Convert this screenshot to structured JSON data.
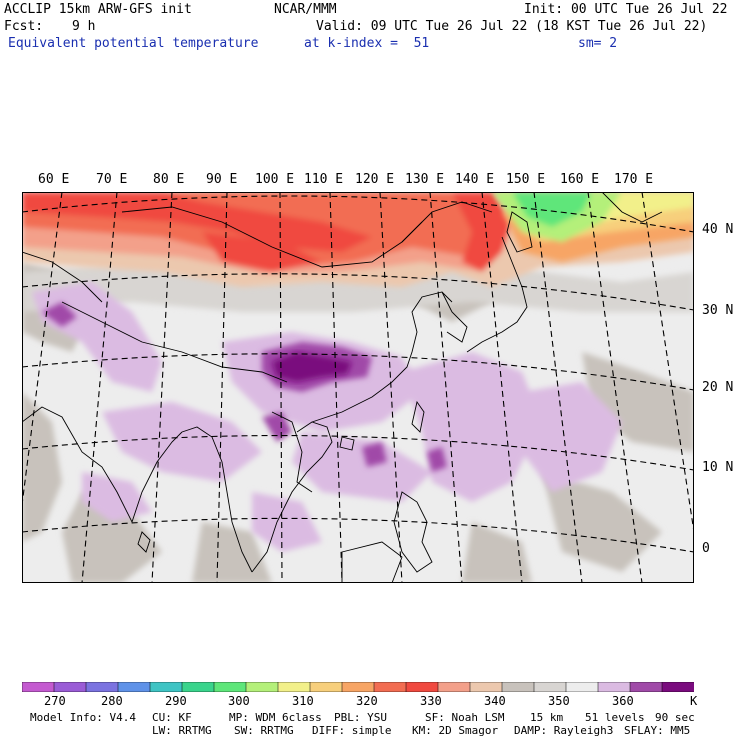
{
  "header": {
    "left1": "ACCLIP 15km ARW-GFS init",
    "center1": "NCAR/MMM",
    "right1": "Init: 00 UTC Tue 26 Jul 22",
    "fcst_label": "Fcst:",
    "fcst_value": "9 h",
    "valid": "Valid: 09 UTC Tue 26 Jul 22 (18 KST Tue 26 Jul 22)",
    "field": "Equivalent potential temperature",
    "level": "at k-index =  51",
    "smooth": "sm= 2"
  },
  "map": {
    "lon_labels": [
      "60 E",
      "70 E",
      "80 E",
      "90 E",
      "100 E",
      "110 E",
      "120 E",
      "130 E",
      "140 E",
      "150 E",
      "160 E",
      "170 E"
    ],
    "lat_labels": [
      "40 N",
      "30 N",
      "20 N",
      "10 N",
      "0"
    ]
  },
  "colorbar": {
    "unit": "K",
    "tick_labels": [
      "270",
      "280",
      "290",
      "300",
      "310",
      "320",
      "330",
      "340",
      "350",
      "360"
    ],
    "colors": [
      "#c45ad0",
      "#9a5cd6",
      "#7b73e0",
      "#5f92e8",
      "#3fc4c4",
      "#3ad48c",
      "#5ee67a",
      "#b4f07a",
      "#f2f08a",
      "#f7cf7c",
      "#f7a565",
      "#f26d52",
      "#f04a40",
      "#f3a08a",
      "#ecc8ae",
      "#c8c2bc",
      "#d8d5d2",
      "#ededed",
      "#dbbbe2",
      "#a04aa8",
      "#7a0b7e"
    ]
  },
  "footer": {
    "line1": [
      "Model Info: V4.4",
      "CU: KF",
      "MP: WDM 6class",
      "PBL: YSU",
      "SF: Noah LSM",
      "15 km",
      "51 levels",
      "90 sec"
    ],
    "line2": [
      "LW: RRTMG",
      "SW: RRTMG",
      "DIFF: simple",
      "KM: 2D Smagor",
      "DAMP: Rayleigh3",
      "SFLAY: MM5"
    ]
  }
}
